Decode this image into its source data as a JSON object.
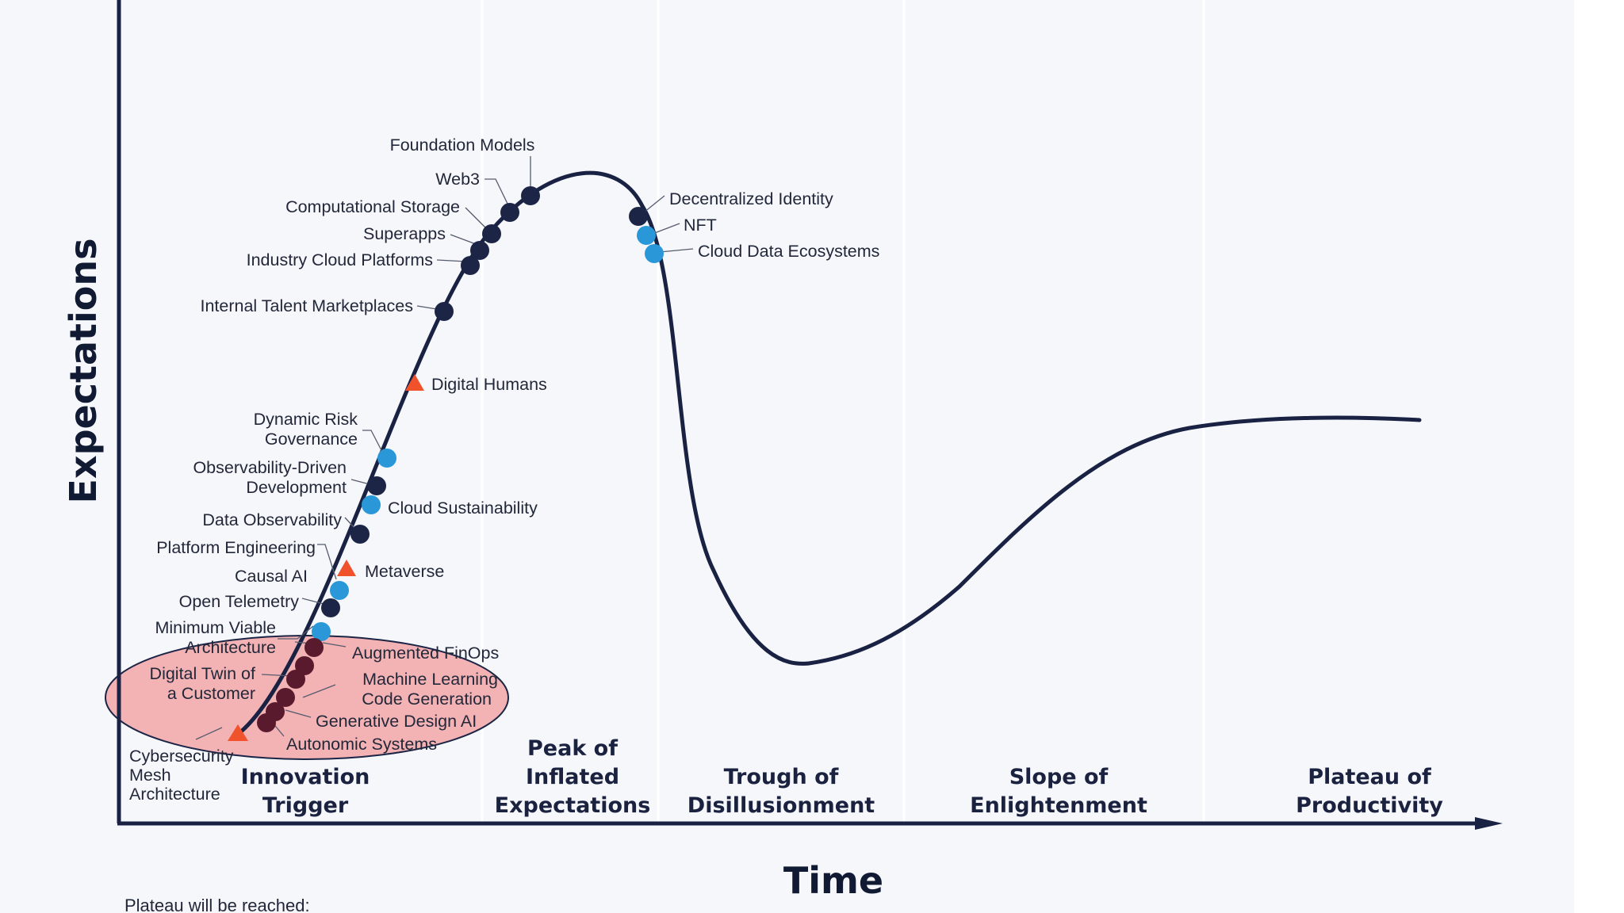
{
  "colors": {
    "background": "#f6f7fb",
    "curve": "#1a2244",
    "dot_dark": "#1c2546",
    "dot_blue": "#2997d8",
    "triangle": "#f0522c",
    "highlight_fill": "#f2a6a6",
    "highlight_stroke": "#1c2546",
    "divider": "#ffffff"
  },
  "axes": {
    "y_title": "Expectations",
    "x_title": "Time"
  },
  "phases": [
    {
      "id": "innovation",
      "lines": [
        "Innovation",
        "Trigger"
      ]
    },
    {
      "id": "peak",
      "lines": [
        "Peak of",
        "Inflated",
        "Expectations"
      ]
    },
    {
      "id": "trough",
      "lines": [
        "Trough of",
        "Disillusionment"
      ]
    },
    {
      "id": "slope",
      "lines": [
        "Slope of",
        "Enlightenment"
      ]
    },
    {
      "id": "plateau",
      "lines": [
        "Plateau of",
        "Productivity"
      ]
    }
  ],
  "footer_note": "Plateau will be reached:",
  "technologies": [
    {
      "name": [
        "Foundation Models"
      ],
      "marker": "dot-dark"
    },
    {
      "name": [
        "Web3"
      ],
      "marker": "dot-dark"
    },
    {
      "name": [
        "Computational Storage"
      ],
      "marker": "dot-dark"
    },
    {
      "name": [
        "Superapps"
      ],
      "marker": "dot-dark"
    },
    {
      "name": [
        "Industry Cloud Platforms"
      ],
      "marker": "dot-dark"
    },
    {
      "name": [
        "Internal Talent Marketplaces"
      ],
      "marker": "dot-dark"
    },
    {
      "name": [
        "Digital Humans"
      ],
      "marker": "triangle"
    },
    {
      "name": [
        "Dynamic Risk",
        "Governance"
      ],
      "marker": "dot-blue"
    },
    {
      "name": [
        "Observability-Driven",
        "Development"
      ],
      "marker": "dot-dark"
    },
    {
      "name": [
        "Cloud Sustainability"
      ],
      "marker": "dot-blue"
    },
    {
      "name": [
        "Data Observability"
      ],
      "marker": "dot-dark"
    },
    {
      "name": [
        "Platform Engineering"
      ],
      "marker": "none"
    },
    {
      "name": [
        "Metaverse"
      ],
      "marker": "triangle"
    },
    {
      "name": [
        "Causal AI"
      ],
      "marker": "dot-blue"
    },
    {
      "name": [
        "Open Telemetry"
      ],
      "marker": "dot-dark"
    },
    {
      "name": [
        "Minimum Viable",
        "Architecture"
      ],
      "marker": "dot-blue"
    },
    {
      "name": [
        "Augmented FinOps"
      ],
      "marker": "dot-dark"
    },
    {
      "name": [
        "Digital Twin of",
        "a Customer"
      ],
      "marker": "dot-dark"
    },
    {
      "name": [
        "Machine Learning",
        "Code Generation"
      ],
      "marker": "dot-dark"
    },
    {
      "name": [
        "Generative Design AI"
      ],
      "marker": "dot-dark"
    },
    {
      "name": [
        "Autonomic Systems"
      ],
      "marker": "dot-dark"
    },
    {
      "name": [
        "Cybersecurity",
        "Mesh",
        "Architecture"
      ],
      "marker": "triangle"
    },
    {
      "name": [
        "Decentralized Identity"
      ],
      "marker": "dot-dark"
    },
    {
      "name": [
        "NFT"
      ],
      "marker": "dot-blue"
    },
    {
      "name": [
        "Cloud Data Ecosystems"
      ],
      "marker": "dot-blue"
    }
  ]
}
